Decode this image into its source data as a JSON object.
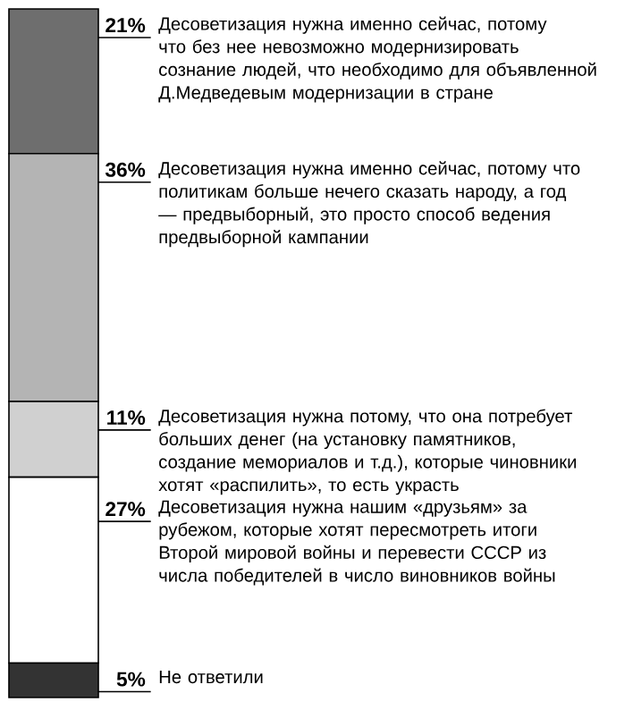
{
  "chart_data": {
    "type": "bar",
    "stacked": true,
    "categories": [
      null
    ],
    "ylim": [
      0,
      100
    ],
    "tick_labels": false,
    "series": [
      {
        "name": "Не ответили",
        "color": "#333333",
        "values": [
          5
        ],
        "value_labels": [
          "5%"
        ]
      },
      {
        "name": "Десоветизация нужна нашим «друзьям» за рубежом, которые хотят пересмотреть итоги Второй мировой войны и перевести СССР из числа победителей в число виновников войны",
        "color": "#ffffff",
        "values": [
          27
        ],
        "value_labels": [
          "27%"
        ]
      },
      {
        "name": "Десоветизация нужна потому, что она потребует больших денег (на установку памятников, создание мемориалов и т.д.), которые чиновники хотят «распилить», то есть украсть",
        "color": "#d0d0d0",
        "values": [
          11
        ],
        "value_labels": [
          "11%"
        ]
      },
      {
        "name": "Десоветизация нужна именно сейчас, потому что политикам больше нечего сказать народу, а год — предвыборный, это просто способ ведения предвыборной кампании",
        "color": "#b4b4b4",
        "values": [
          36
        ],
        "value_labels": [
          "36%"
        ]
      },
      {
        "name": "Десоветизация нужна именно сейчас, потому что без нее невозможно модернизировать сознание людей, что необходимо для объявленной Д.Медведевым модернизации в стране",
        "color": "#6e6e6e",
        "values": [
          21
        ],
        "value_labels": [
          "21%"
        ]
      }
    ]
  }
}
